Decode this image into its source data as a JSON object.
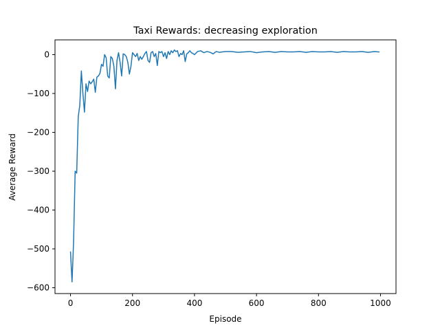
{
  "chart_data": {
    "type": "line",
    "title": "Taxi Rewards: decreasing exploration",
    "xlabel": "Episode",
    "ylabel": "Average Reward",
    "xlim": [
      -50,
      1050
    ],
    "ylim": [
      -615,
      38
    ],
    "xticks": [
      0,
      200,
      400,
      600,
      800,
      1000
    ],
    "yticks": [
      0,
      -100,
      -200,
      -300,
      -400,
      -500,
      -600
    ],
    "xtick_labels": [
      "0",
      "200",
      "400",
      "600",
      "800",
      "1000"
    ],
    "ytick_labels": [
      "0",
      "−100",
      "−200",
      "−300",
      "−400",
      "−500",
      "−600"
    ],
    "grid": false,
    "series": [
      {
        "color": "#1f77b4",
        "x": [
          0,
          5,
          10,
          15,
          20,
          25,
          30,
          35,
          40,
          45,
          50,
          55,
          60,
          65,
          70,
          75,
          80,
          85,
          90,
          95,
          100,
          105,
          110,
          115,
          120,
          125,
          130,
          135,
          140,
          145,
          150,
          155,
          160,
          165,
          170,
          175,
          180,
          185,
          190,
          195,
          200,
          205,
          210,
          215,
          220,
          225,
          230,
          235,
          240,
          245,
          250,
          255,
          260,
          265,
          270,
          275,
          280,
          285,
          290,
          295,
          300,
          305,
          310,
          315,
          320,
          325,
          330,
          335,
          340,
          345,
          350,
          355,
          360,
          365,
          370,
          375,
          380,
          385,
          390,
          395,
          400,
          410,
          420,
          430,
          440,
          450,
          460,
          470,
          480,
          490,
          500,
          520,
          540,
          560,
          580,
          600,
          620,
          640,
          660,
          680,
          700,
          720,
          740,
          760,
          780,
          800,
          820,
          840,
          860,
          880,
          900,
          920,
          940,
          960,
          980,
          995
        ],
        "y": [
          -508,
          -585,
          -480,
          -300,
          -305,
          -160,
          -130,
          -42,
          -100,
          -148,
          -75,
          -95,
          -68,
          -75,
          -70,
          -63,
          -97,
          -58,
          -55,
          -48,
          -25,
          -30,
          0,
          -8,
          -55,
          -60,
          -5,
          -10,
          -30,
          -88,
          -15,
          5,
          -20,
          -55,
          2,
          0,
          -5,
          -20,
          -50,
          -30,
          5,
          0,
          -5,
          3,
          -15,
          -5,
          -12,
          -5,
          3,
          8,
          -15,
          -20,
          5,
          8,
          -5,
          3,
          -28,
          8,
          5,
          8,
          -5,
          5,
          -10,
          8,
          0,
          10,
          5,
          12,
          8,
          10,
          -5,
          3,
          0,
          10,
          -18,
          2,
          5,
          10,
          5,
          3,
          0,
          8,
          10,
          5,
          8,
          6,
          2,
          8,
          6,
          7,
          8,
          8,
          6,
          7,
          8,
          5,
          7,
          8,
          6,
          8,
          7,
          7,
          8,
          6,
          8,
          7,
          7,
          8,
          6,
          8,
          7,
          7,
          8,
          6,
          8,
          7
        ]
      }
    ]
  }
}
